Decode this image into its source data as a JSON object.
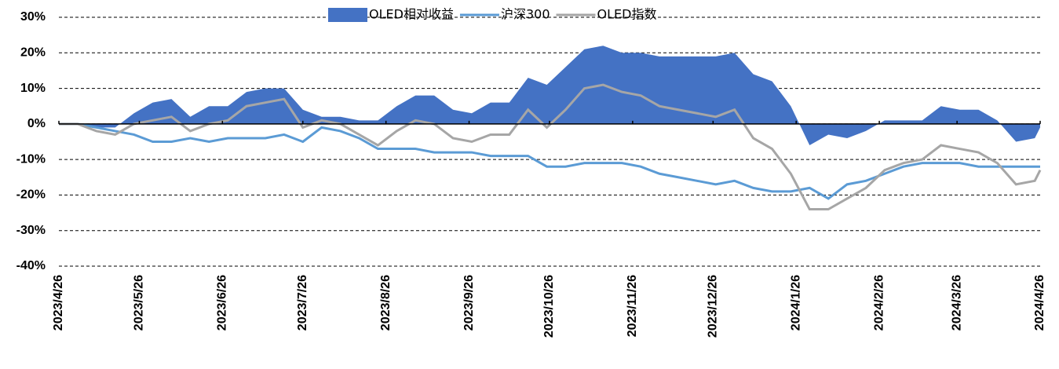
{
  "chart_data": {
    "type": "line",
    "x": [
      "2023/4/26",
      "2023/5/3",
      "2023/5/10",
      "2023/5/17",
      "2023/5/24",
      "2023/5/31",
      "2023/6/7",
      "2023/6/14",
      "2023/6/21",
      "2023/6/28",
      "2023/7/5",
      "2023/7/12",
      "2023/7/19",
      "2023/7/26",
      "2023/8/2",
      "2023/8/9",
      "2023/8/16",
      "2023/8/23",
      "2023/8/30",
      "2023/9/6",
      "2023/9/13",
      "2023/9/20",
      "2023/9/27",
      "2023/10/4",
      "2023/10/11",
      "2023/10/18",
      "2023/10/25",
      "2023/11/1",
      "2023/11/8",
      "2023/11/15",
      "2023/11/22",
      "2023/11/29",
      "2023/12/6",
      "2023/12/13",
      "2023/12/20",
      "2023/12/27",
      "2024/1/3",
      "2024/1/10",
      "2024/1/17",
      "2024/1/24",
      "2024/1/31",
      "2024/2/7",
      "2024/2/14",
      "2024/2/21",
      "2024/2/28",
      "2024/3/6",
      "2024/3/13",
      "2024/3/20",
      "2024/3/27",
      "2024/4/3",
      "2024/4/10",
      "2024/4/17",
      "2024/4/24",
      "2024/4/26"
    ],
    "series": [
      {
        "name": "OLED相对收益",
        "color": "#4472c4",
        "kind": "area",
        "values": [
          0,
          0,
          -1,
          -1,
          3,
          6,
          7,
          2,
          5,
          5,
          9,
          10,
          10,
          4,
          2,
          2,
          1,
          1,
          5,
          8,
          8,
          4,
          3,
          6,
          6,
          13,
          11,
          16,
          21,
          22,
          20,
          20,
          19,
          19,
          19,
          19,
          20,
          14,
          12,
          5,
          -6,
          -3,
          -4,
          -2,
          1,
          1,
          1,
          5,
          4,
          4,
          1,
          -5,
          -4,
          -1
        ]
      },
      {
        "name": "沪深300",
        "color": "#5b9bd5",
        "kind": "line",
        "values": [
          0,
          0,
          -1,
          -2,
          -3,
          -5,
          -5,
          -4,
          -5,
          -4,
          -4,
          -4,
          -3,
          -5,
          -1,
          -2,
          -4,
          -7,
          -7,
          -7,
          -8,
          -8,
          -8,
          -9,
          -9,
          -9,
          -12,
          -12,
          -11,
          -11,
          -11,
          -12,
          -14,
          -15,
          -16,
          -17,
          -16,
          -18,
          -19,
          -19,
          -18,
          -21,
          -17,
          -16,
          -14,
          -12,
          -11,
          -11,
          -11,
          -12,
          -12,
          -12,
          -12,
          -12
        ]
      },
      {
        "name": "OLED指数",
        "color": "#a6a6a6",
        "kind": "line",
        "values": [
          0,
          0,
          -2,
          -3,
          0,
          1,
          2,
          -2,
          0,
          1,
          5,
          6,
          7,
          -1,
          1,
          0,
          -3,
          -6,
          -2,
          1,
          0,
          -4,
          -5,
          -3,
          -3,
          4,
          -1,
          4,
          10,
          11,
          9,
          8,
          5,
          4,
          3,
          2,
          4,
          -4,
          -7,
          -14,
          -24,
          -24,
          -21,
          -18,
          -13,
          -11,
          -10,
          -6,
          -7,
          -8,
          -11,
          -17,
          -16,
          -13
        ]
      }
    ],
    "xlim": [
      "2023/4/26",
      "2024/4/26"
    ],
    "xticks": [
      "2023/4/26",
      "2023/5/26",
      "2023/6/26",
      "2023/7/26",
      "2023/8/26",
      "2023/9/26",
      "2023/10/26",
      "2023/11/26",
      "2023/12/26",
      "2024/1/26",
      "2024/2/26",
      "2024/3/26",
      "2024/4/26"
    ],
    "ylim": [
      -40,
      30
    ],
    "yticks": [
      {
        "value": 30,
        "label": "30%"
      },
      {
        "value": 20,
        "label": "20%"
      },
      {
        "value": 10,
        "label": "10%"
      },
      {
        "value": 0,
        "label": "0%"
      },
      {
        "value": -10,
        "label": "-10%"
      },
      {
        "value": -20,
        "label": "-20%"
      },
      {
        "value": -30,
        "label": "-30%"
      },
      {
        "value": -40,
        "label": "-40%"
      }
    ],
    "grid": true,
    "legend": "top"
  }
}
